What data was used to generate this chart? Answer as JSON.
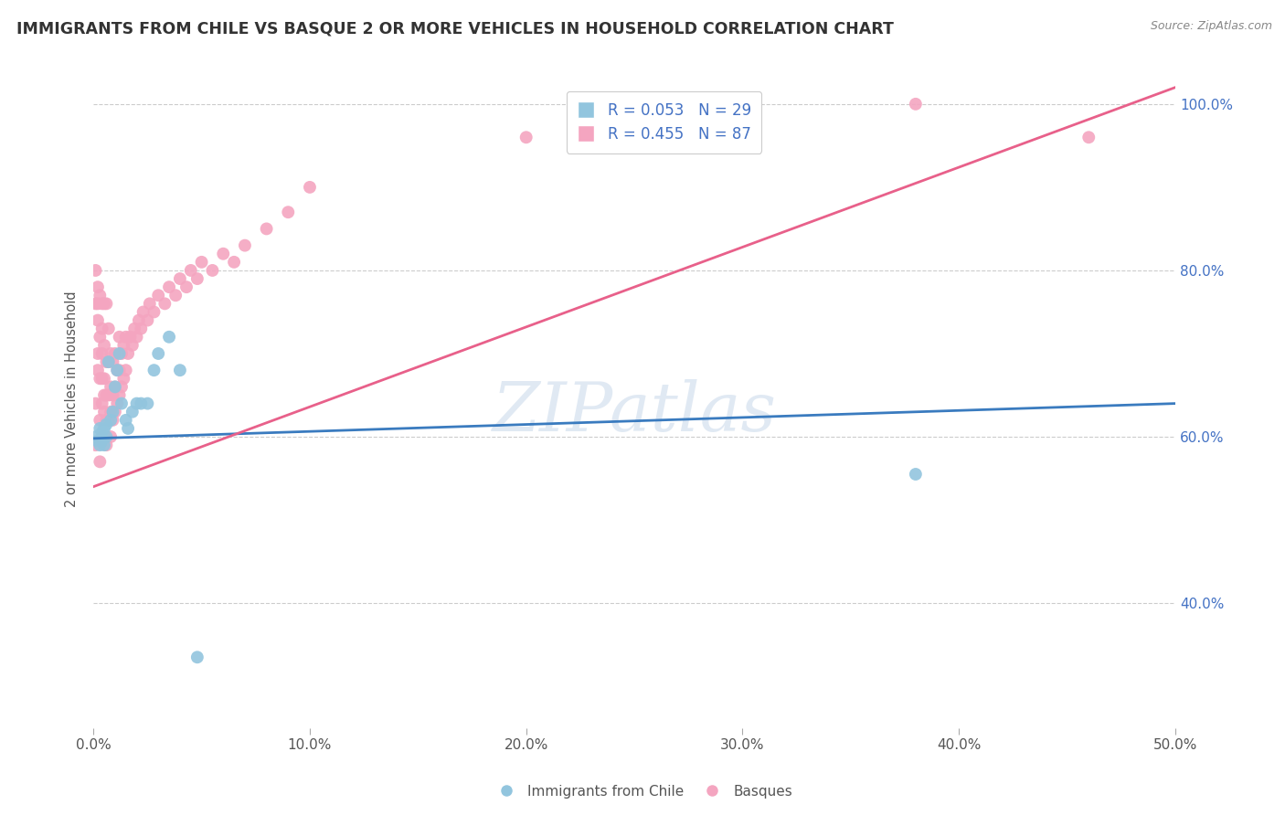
{
  "title": "IMMIGRANTS FROM CHILE VS BASQUE 2 OR MORE VEHICLES IN HOUSEHOLD CORRELATION CHART",
  "source": "Source: ZipAtlas.com",
  "ylabel": "2 or more Vehicles in Household",
  "watermark": "ZIPatlas",
  "xlim": [
    0.0,
    0.5
  ],
  "ylim": [
    0.25,
    1.04
  ],
  "xtick_labels": [
    "0.0%",
    "10.0%",
    "20.0%",
    "30.0%",
    "40.0%",
    "50.0%"
  ],
  "xtick_vals": [
    0.0,
    0.1,
    0.2,
    0.3,
    0.4,
    0.5
  ],
  "ytick_labels": [
    "40.0%",
    "60.0%",
    "80.0%",
    "100.0%"
  ],
  "ytick_vals": [
    0.4,
    0.6,
    0.8,
    1.0
  ],
  "chile_color": "#92c5de",
  "basque_color": "#f4a5c0",
  "chile_line_color": "#3a7bbf",
  "basque_line_color": "#e8608a",
  "chile_R": 0.053,
  "chile_N": 29,
  "basque_R": 0.455,
  "basque_N": 87,
  "legend_label_chile": "Immigrants from Chile",
  "legend_label_basque": "Basques",
  "chile_x": [
    0.001,
    0.002,
    0.003,
    0.003,
    0.004,
    0.004,
    0.005,
    0.005,
    0.006,
    0.006,
    0.007,
    0.008,
    0.009,
    0.01,
    0.011,
    0.012,
    0.013,
    0.015,
    0.016,
    0.018,
    0.02,
    0.022,
    0.025,
    0.028,
    0.03,
    0.035,
    0.04,
    0.048,
    0.38
  ],
  "chile_y": [
    0.6,
    0.595,
    0.61,
    0.59,
    0.605,
    0.595,
    0.61,
    0.59,
    0.615,
    0.6,
    0.69,
    0.62,
    0.63,
    0.66,
    0.68,
    0.7,
    0.64,
    0.62,
    0.61,
    0.63,
    0.64,
    0.64,
    0.64,
    0.68,
    0.7,
    0.72,
    0.68,
    0.335,
    0.555
  ],
  "basque_x": [
    0.001,
    0.001,
    0.001,
    0.001,
    0.002,
    0.002,
    0.002,
    0.002,
    0.002,
    0.003,
    0.003,
    0.003,
    0.003,
    0.003,
    0.004,
    0.004,
    0.004,
    0.004,
    0.004,
    0.004,
    0.005,
    0.005,
    0.005,
    0.005,
    0.005,
    0.005,
    0.006,
    0.006,
    0.006,
    0.006,
    0.006,
    0.007,
    0.007,
    0.007,
    0.007,
    0.008,
    0.008,
    0.008,
    0.008,
    0.009,
    0.009,
    0.009,
    0.01,
    0.01,
    0.01,
    0.011,
    0.011,
    0.012,
    0.012,
    0.012,
    0.013,
    0.013,
    0.014,
    0.014,
    0.015,
    0.015,
    0.016,
    0.017,
    0.018,
    0.019,
    0.02,
    0.021,
    0.022,
    0.023,
    0.025,
    0.026,
    0.028,
    0.03,
    0.033,
    0.035,
    0.038,
    0.04,
    0.043,
    0.045,
    0.048,
    0.05,
    0.055,
    0.06,
    0.065,
    0.07,
    0.08,
    0.09,
    0.1,
    0.2,
    0.3,
    0.38,
    0.46
  ],
  "basque_y": [
    0.59,
    0.64,
    0.76,
    0.8,
    0.68,
    0.7,
    0.74,
    0.76,
    0.78,
    0.57,
    0.62,
    0.67,
    0.72,
    0.77,
    0.6,
    0.64,
    0.67,
    0.7,
    0.73,
    0.76,
    0.6,
    0.63,
    0.65,
    0.67,
    0.71,
    0.76,
    0.59,
    0.62,
    0.65,
    0.69,
    0.76,
    0.62,
    0.65,
    0.69,
    0.73,
    0.6,
    0.63,
    0.66,
    0.7,
    0.62,
    0.65,
    0.69,
    0.63,
    0.66,
    0.7,
    0.64,
    0.68,
    0.65,
    0.68,
    0.72,
    0.66,
    0.7,
    0.67,
    0.71,
    0.68,
    0.72,
    0.7,
    0.72,
    0.71,
    0.73,
    0.72,
    0.74,
    0.73,
    0.75,
    0.74,
    0.76,
    0.75,
    0.77,
    0.76,
    0.78,
    0.77,
    0.79,
    0.78,
    0.8,
    0.79,
    0.81,
    0.8,
    0.82,
    0.81,
    0.83,
    0.85,
    0.87,
    0.9,
    0.96,
    0.98,
    1.0,
    0.96
  ],
  "chile_line_x": [
    0.0,
    0.5
  ],
  "chile_line_y": [
    0.598,
    0.64
  ],
  "basque_line_x": [
    0.0,
    0.5
  ],
  "basque_line_y": [
    0.54,
    1.02
  ]
}
